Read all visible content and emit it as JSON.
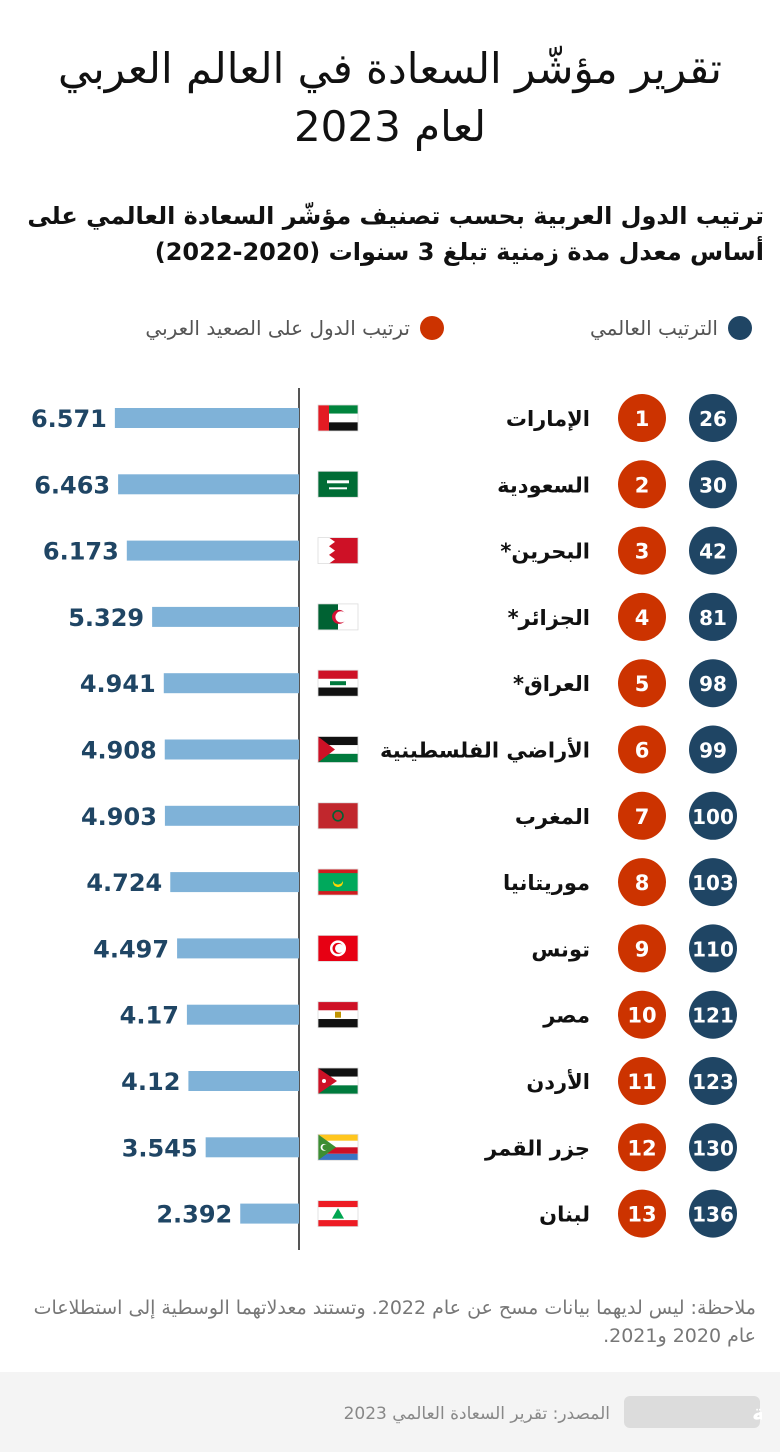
{
  "header": {
    "title": "تقرير مؤشّر السعادة في العالم العربي لعام 2023",
    "subtitle": "ترتيب الدول العربية بحسب تصنيف مؤشّر السعادة العالمي على أساس معدل مدة زمنية تبلغ 3 سنوات (2020-2022)"
  },
  "legend": {
    "global": {
      "label": "الترتيب العالمي",
      "color": "#1f4564"
    },
    "arab": {
      "label": "ترتيب الدول على الصعيد العربي",
      "color": "#cc3300"
    }
  },
  "chart_data": {
    "type": "bar",
    "orientation": "horizontal",
    "categories": [
      "الإمارات",
      "السعودية",
      "البحرين*",
      "الجزائر*",
      "العراق*",
      "الأراضي الفلسطينية",
      "المغرب",
      "موريتانيا",
      "تونس",
      "مصر",
      "الأردن",
      "جزر القمر",
      "لبنان"
    ],
    "values": [
      6.571,
      6.463,
      6.173,
      5.329,
      4.941,
      4.908,
      4.903,
      4.724,
      4.497,
      4.17,
      4.12,
      3.545,
      2.392
    ],
    "value_labels": [
      "6.571",
      "6.463",
      "6.173",
      "5.329",
      "4.941",
      "4.908",
      "4.903",
      "4.724",
      "4.497",
      "4.17",
      "4.12",
      "3.545",
      "2.392"
    ],
    "arab_rank": [
      "1",
      "2",
      "3",
      "4",
      "5",
      "6",
      "7",
      "8",
      "9",
      "10",
      "11",
      "12",
      "13"
    ],
    "global_rank": [
      "26",
      "30",
      "42",
      "81",
      "98",
      "99",
      "100",
      "103",
      "110",
      "121",
      "123",
      "130",
      "136"
    ],
    "flags": [
      "uae-flag",
      "saudi-flag",
      "bahrain-flag",
      "algeria-flag",
      "iraq-flag",
      "palestine-flag",
      "morocco-flag",
      "mauritania-flag",
      "tunisia-flag",
      "egypt-flag",
      "jordan-flag",
      "comoros-flag",
      "lebanon-flag"
    ],
    "xlim": [
      0,
      8
    ],
    "bar_color": "#7fb2d8",
    "value_label_color": "#1f4564",
    "title": "",
    "xlabel": "",
    "ylabel": ""
  },
  "note": "ملاحظة: ليس لديهما بيانات مسح عن عام 2022. وتستند معدلاتهما الوسطية إلى استطلاعات عام 2020 و2021.",
  "footer": {
    "source": "المصدر: تقرير السعادة العالمي 2023",
    "logo_text": "بالعربية",
    "logo_icon": "cnn-arabic-logo"
  }
}
